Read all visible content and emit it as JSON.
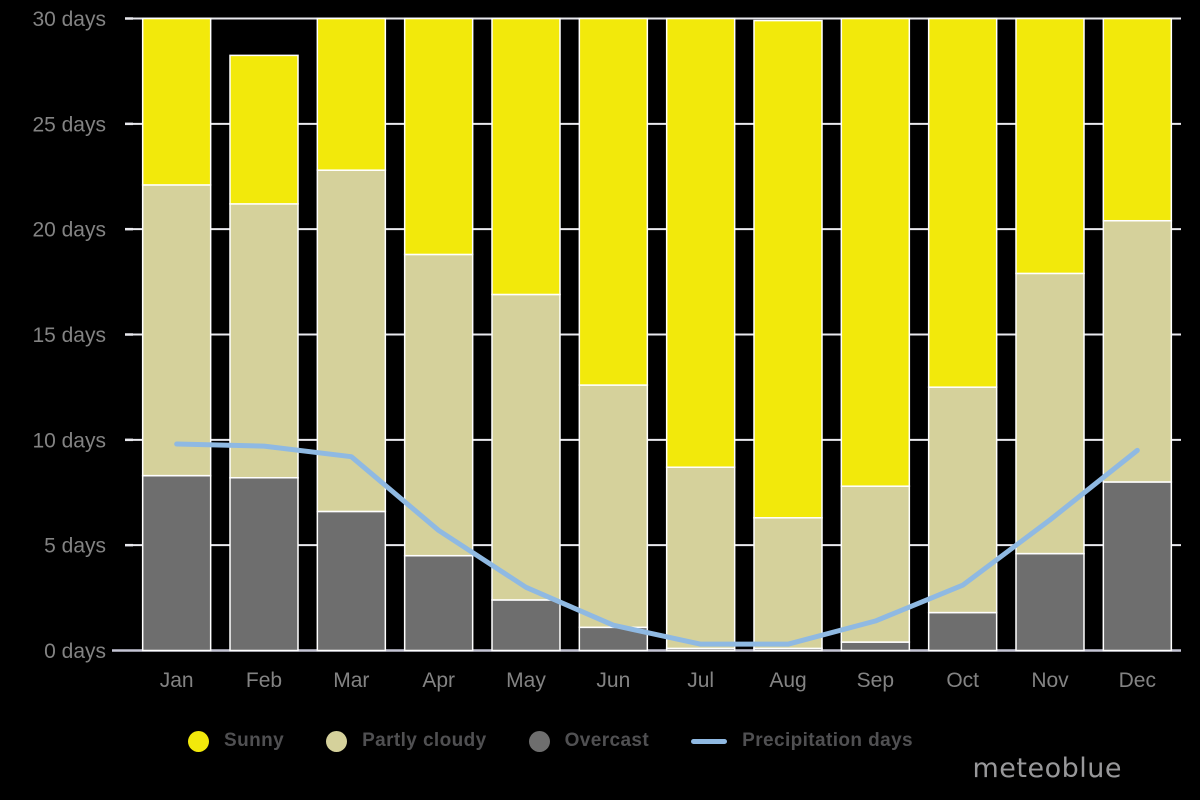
{
  "chart_data": {
    "type": "bar",
    "variant": "stacked-bars-with-line-overlay",
    "categories": [
      "Jan",
      "Feb",
      "Mar",
      "Apr",
      "May",
      "Jun",
      "Jul",
      "Aug",
      "Sep",
      "Oct",
      "Nov",
      "Dec"
    ],
    "series": [
      {
        "name": "Sunny",
        "kind": "bar",
        "color": "#f2e90b",
        "values": [
          7.9,
          7.05,
          7.2,
          11.2,
          13.1,
          17.4,
          21.3,
          23.6,
          22.2,
          17.5,
          12.1,
          9.6
        ]
      },
      {
        "name": "Partly cloudy",
        "kind": "bar",
        "color": "#d5d19b",
        "values": [
          13.8,
          13.0,
          16.2,
          14.3,
          14.5,
          11.5,
          8.6,
          6.2,
          7.4,
          10.7,
          13.3,
          12.4
        ]
      },
      {
        "name": "Overcast",
        "kind": "bar",
        "color": "#6e6e6e",
        "values": [
          8.3,
          8.2,
          6.6,
          4.5,
          2.4,
          1.1,
          0.1,
          0.1,
          0.4,
          1.8,
          4.6,
          8.0
        ]
      },
      {
        "name": "Precipitation days",
        "kind": "line",
        "color": "#8fb9e2",
        "values": [
          9.8,
          9.7,
          9.2,
          5.7,
          3.0,
          1.2,
          0.3,
          0.3,
          1.4,
          3.1,
          6.2,
          9.5
        ]
      }
    ],
    "stack_order_bottom_to_top": [
      "Overcast",
      "Partly cloudy",
      "Sunny"
    ],
    "ylim": [
      0,
      30
    ],
    "y_tick_step": 5,
    "y_tick_labels": [
      "0 days",
      "5 days",
      "10 days",
      "15 days",
      "20 days",
      "25 days",
      "30 days"
    ],
    "grid": "horizontal",
    "legend_position": "bottom",
    "background_color": "#000000",
    "gridline_color": "#e9e9ee",
    "baseline_color": "#c6c6d6",
    "bar_outline_color": "#ffffff",
    "axis_label_color": "#838383"
  },
  "legend": {
    "text_color": "#505052",
    "items": [
      {
        "label": "Sunny",
        "swatch": "circle",
        "color": "#f2e90b"
      },
      {
        "label": "Partly cloudy",
        "swatch": "circle",
        "color": "#d5d19b"
      },
      {
        "label": "Overcast",
        "swatch": "circle",
        "color": "#6e6e6e"
      },
      {
        "label": "Precipitation days",
        "swatch": "line",
        "color": "#8fb9e2"
      }
    ]
  },
  "branding": {
    "logo_text": "meteoblue",
    "color": "#98989a"
  }
}
